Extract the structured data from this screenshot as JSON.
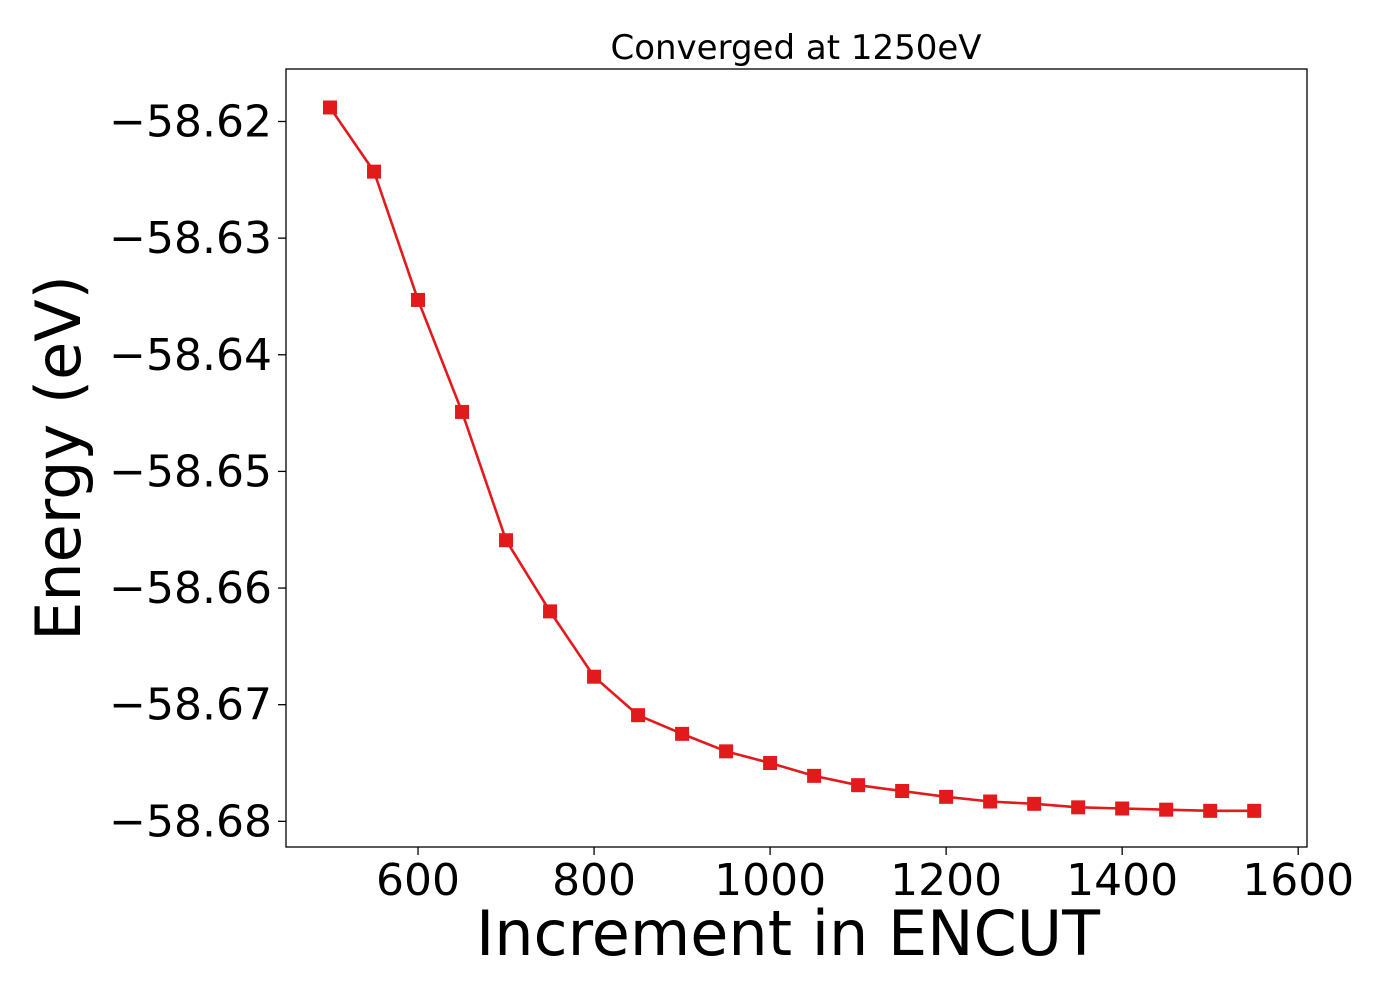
{
  "chart_data": {
    "type": "line",
    "title": "Converged at 1250eV",
    "xlabel": "Increment in ENCUT",
    "ylabel": "Energy (eV)",
    "xlim": [
      450,
      1610
    ],
    "ylim": [
      -58.6822,
      -58.6155
    ],
    "x_ticks": [
      600,
      800,
      1000,
      1200,
      1400,
      1600
    ],
    "x_tick_labels": [
      "600",
      "800",
      "1000",
      "1200",
      "1400",
      "1600"
    ],
    "y_ticks": [
      -58.62,
      -58.63,
      -58.64,
      -58.65,
      -58.66,
      -58.67,
      -58.68
    ],
    "y_tick_labels": [
      "−58.62",
      "−58.63",
      "−58.64",
      "−58.65",
      "−58.66",
      "−58.67",
      "−58.68"
    ],
    "grid": false,
    "legend": "none",
    "series": [
      {
        "color": "#e31a1c",
        "marker": "square",
        "x": [
          500,
          550,
          600,
          650,
          700,
          750,
          800,
          850,
          900,
          950,
          1000,
          1050,
          1100,
          1150,
          1200,
          1250,
          1300,
          1350,
          1400,
          1450,
          1500,
          1550
        ],
        "y": [
          -58.6188,
          -58.6243,
          -58.6353,
          -58.6449,
          -58.6559,
          -58.662,
          -58.6676,
          -58.6709,
          -58.6725,
          -58.674,
          -58.675,
          -58.6761,
          -58.6769,
          -58.6774,
          -58.6779,
          -58.6783,
          -58.6785,
          -58.6788,
          -58.6789,
          -58.679,
          -58.6791,
          -58.6791
        ]
      }
    ]
  }
}
